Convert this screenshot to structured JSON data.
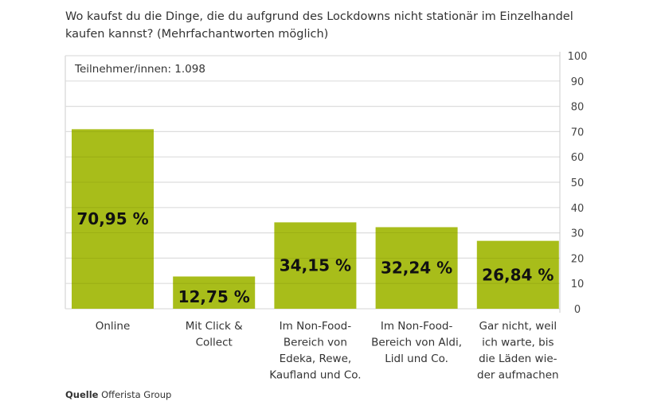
{
  "chart_data": {
    "type": "bar",
    "title": "Wo kaufst du die Dinge, die du aufgrund des Lockdowns nicht stationär im Einzelhandel kaufen kannst? (Mehrfachantworten möglich)",
    "note": "Teilnehmer/innen: 1.098",
    "categories": [
      [
        "Online"
      ],
      [
        "Mit Click &",
        "Collect"
      ],
      [
        "Im Non-Food-",
        "Bereich von",
        "Edeka, Rewe,",
        "Kaufland und Co."
      ],
      [
        "Im Non-Food-",
        "Bereich von Aldi,",
        "Lidl und Co."
      ],
      [
        "Gar nicht, weil",
        "ich warte, bis",
        "die Läden wie-",
        "der aufmachen"
      ]
    ],
    "values": [
      70.95,
      12.75,
      34.15,
      32.24,
      26.84
    ],
    "labels": [
      "70,95 %",
      "12,75 %",
      "34,15 %",
      "32,24 %",
      "26,84 %"
    ],
    "ylim": [
      0,
      100
    ],
    "yticks": [
      0,
      10,
      20,
      30,
      40,
      50,
      60,
      70,
      80,
      90,
      100
    ],
    "y_axis_position": "right",
    "grid": true,
    "bar_color": "#a8bd1a"
  },
  "source": {
    "label": "Quelle",
    "value": "Offerista Group"
  }
}
